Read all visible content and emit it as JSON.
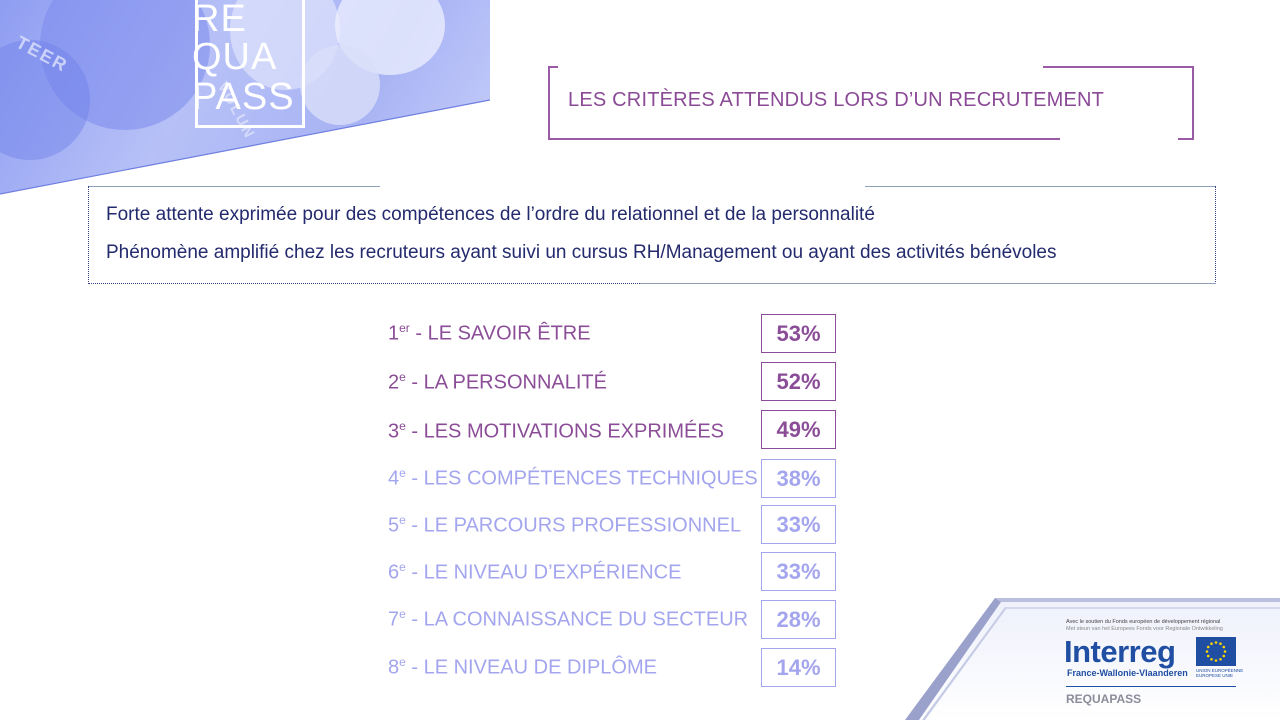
{
  "logo": {
    "lines": [
      "RE",
      "QUA",
      "PASS"
    ]
  },
  "banner": {
    "ghost_words": [
      "TEER",
      "VOLUN"
    ]
  },
  "title": "LES CRITÈRES ATTENDUS LORS D’UN RECRUTEMENT",
  "summary": {
    "line1": "Forte attente exprimée pour des compétences de l’ordre du relationnel et de la personnalité",
    "line2": "Phénomène amplifié chez les recruteurs ayant suivi un cursus RH/Management ou ayant des activités bénévoles"
  },
  "criteria": [
    {
      "rank": "1",
      "suffix": "er",
      "label": " - LE SAVOIR ÊTRE",
      "percent": "53%",
      "value": 53,
      "emphasis": "dark"
    },
    {
      "rank": "2",
      "suffix": "e",
      "label": " - LA PERSONNALITÉ",
      "percent": "52%",
      "value": 52,
      "emphasis": "dark"
    },
    {
      "rank": "3",
      "suffix": "e",
      "label": " - LES MOTIVATIONS EXPRIMÉES",
      "percent": "49%",
      "value": 49,
      "emphasis": "dark"
    },
    {
      "rank": "4",
      "suffix": "e",
      "label": " - LES COMPÉTENCES TECHNIQUES",
      "percent": "38%",
      "value": 38,
      "emphasis": "light"
    },
    {
      "rank": "5",
      "suffix": "e",
      "label": " - LE PARCOURS PROFESSIONNEL",
      "percent": "33%",
      "value": 33,
      "emphasis": "light"
    },
    {
      "rank": "6",
      "suffix": "e",
      "label": " - LE NIVEAU D’EXPÉRIENCE",
      "percent": "33%",
      "value": 33,
      "emphasis": "light"
    },
    {
      "rank": "7",
      "suffix": "e",
      "label": " - LA CONNAISSANCE DU SECTEUR",
      "percent": "28%",
      "value": 28,
      "emphasis": "light"
    },
    {
      "rank": "8",
      "suffix": "e",
      "label": " - LE NIVEAU DE DIPLÔME",
      "percent": "14%",
      "value": 14,
      "emphasis": "light"
    }
  ],
  "interreg": {
    "note1": "Avec le soutien du Fonds européen de développement régional",
    "note2": "Met steun van het Europees Fonds voor Regionale Ontwikkeling",
    "name": "Interreg",
    "region": "France-Wallonie-Vlaanderen",
    "eu_line1": "UNION EUROPÉENNE",
    "eu_line2": "EUROPESE UNIE",
    "project": "REQUAPASS"
  },
  "colors": {
    "accent_dark": "#8b4d97",
    "accent_light": "#a3a5ee",
    "text_navy": "#232a6d",
    "interreg_blue": "#1f4ea2"
  }
}
